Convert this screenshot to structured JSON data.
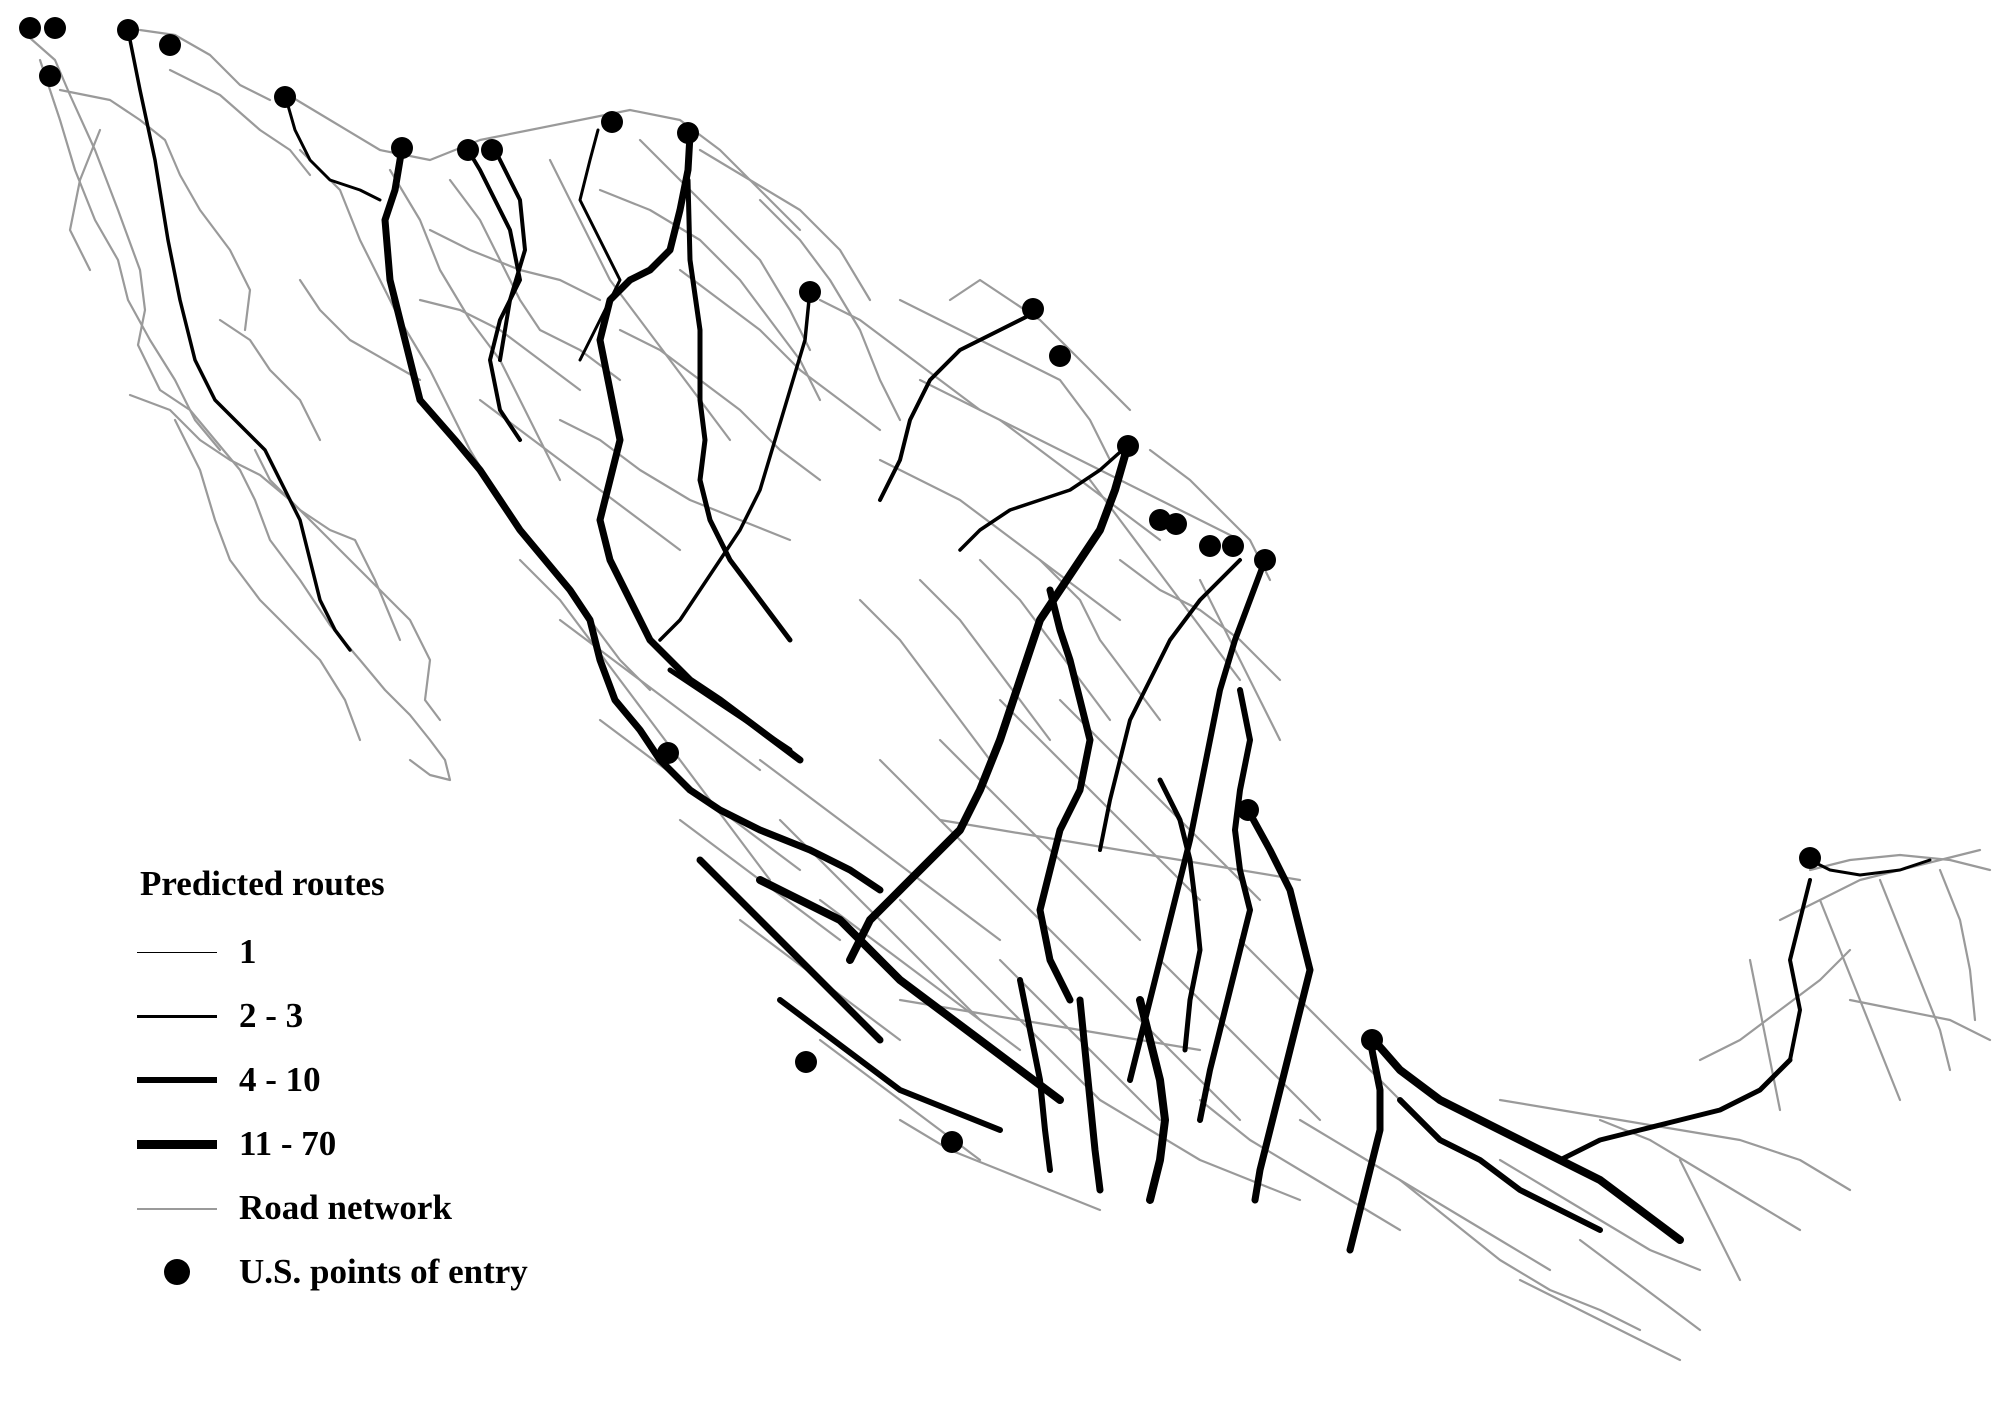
{
  "figure": {
    "colors": {
      "background": "#ffffff",
      "road_network": "#9a9a9a",
      "predicted_route": "#000000",
      "entry_point": "#000000"
    }
  },
  "legend": {
    "title": "Predicted routes",
    "items": [
      {
        "label": "1",
        "kind": "line",
        "stroke_class": "thin",
        "color": "#000000"
      },
      {
        "label": "2 - 3",
        "kind": "line",
        "stroke_class": "medium",
        "color": "#000000"
      },
      {
        "label": "4 - 10",
        "kind": "line",
        "stroke_class": "thick",
        "color": "#000000"
      },
      {
        "label": "11 - 70",
        "kind": "line",
        "stroke_class": "heavy",
        "color": "#000000"
      },
      {
        "label": "Road network",
        "kind": "line",
        "stroke_class": "road",
        "color": "#9a9a9a"
      },
      {
        "label": "U.S. points of entry",
        "kind": "dot",
        "color": "#000000"
      }
    ]
  }
}
